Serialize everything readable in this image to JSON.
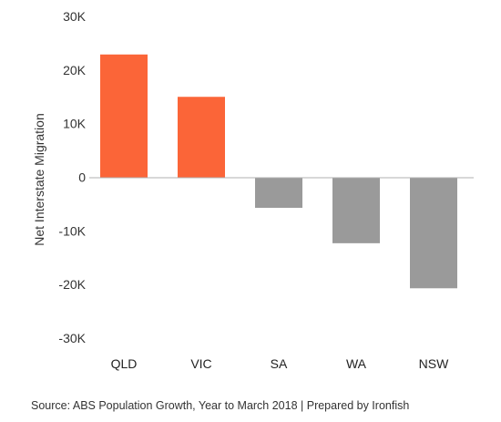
{
  "chart_data": {
    "type": "bar",
    "categories": [
      "QLD",
      "VIC",
      "SA",
      "WA",
      "NSW"
    ],
    "values": [
      22900,
      15000,
      -5700,
      -12300,
      -20700
    ],
    "bar_colors": [
      "#fb6538",
      "#fb6538",
      "#9a9a9a",
      "#9a9a9a",
      "#9a9a9a"
    ],
    "ylabel": "Net Interstate Migration",
    "ylim": [
      -30000,
      30000
    ],
    "yticks": [
      30000,
      20000,
      10000,
      0,
      -10000,
      -20000,
      -30000
    ],
    "ytick_labels": [
      "30K",
      "20K",
      "10K",
      "0",
      "-10K",
      "-20K",
      "-30K"
    ],
    "grid": false,
    "legend": "none"
  },
  "source": "Source: ABS Population Growth, Year to March 2018 | Prepared by Ironfish"
}
